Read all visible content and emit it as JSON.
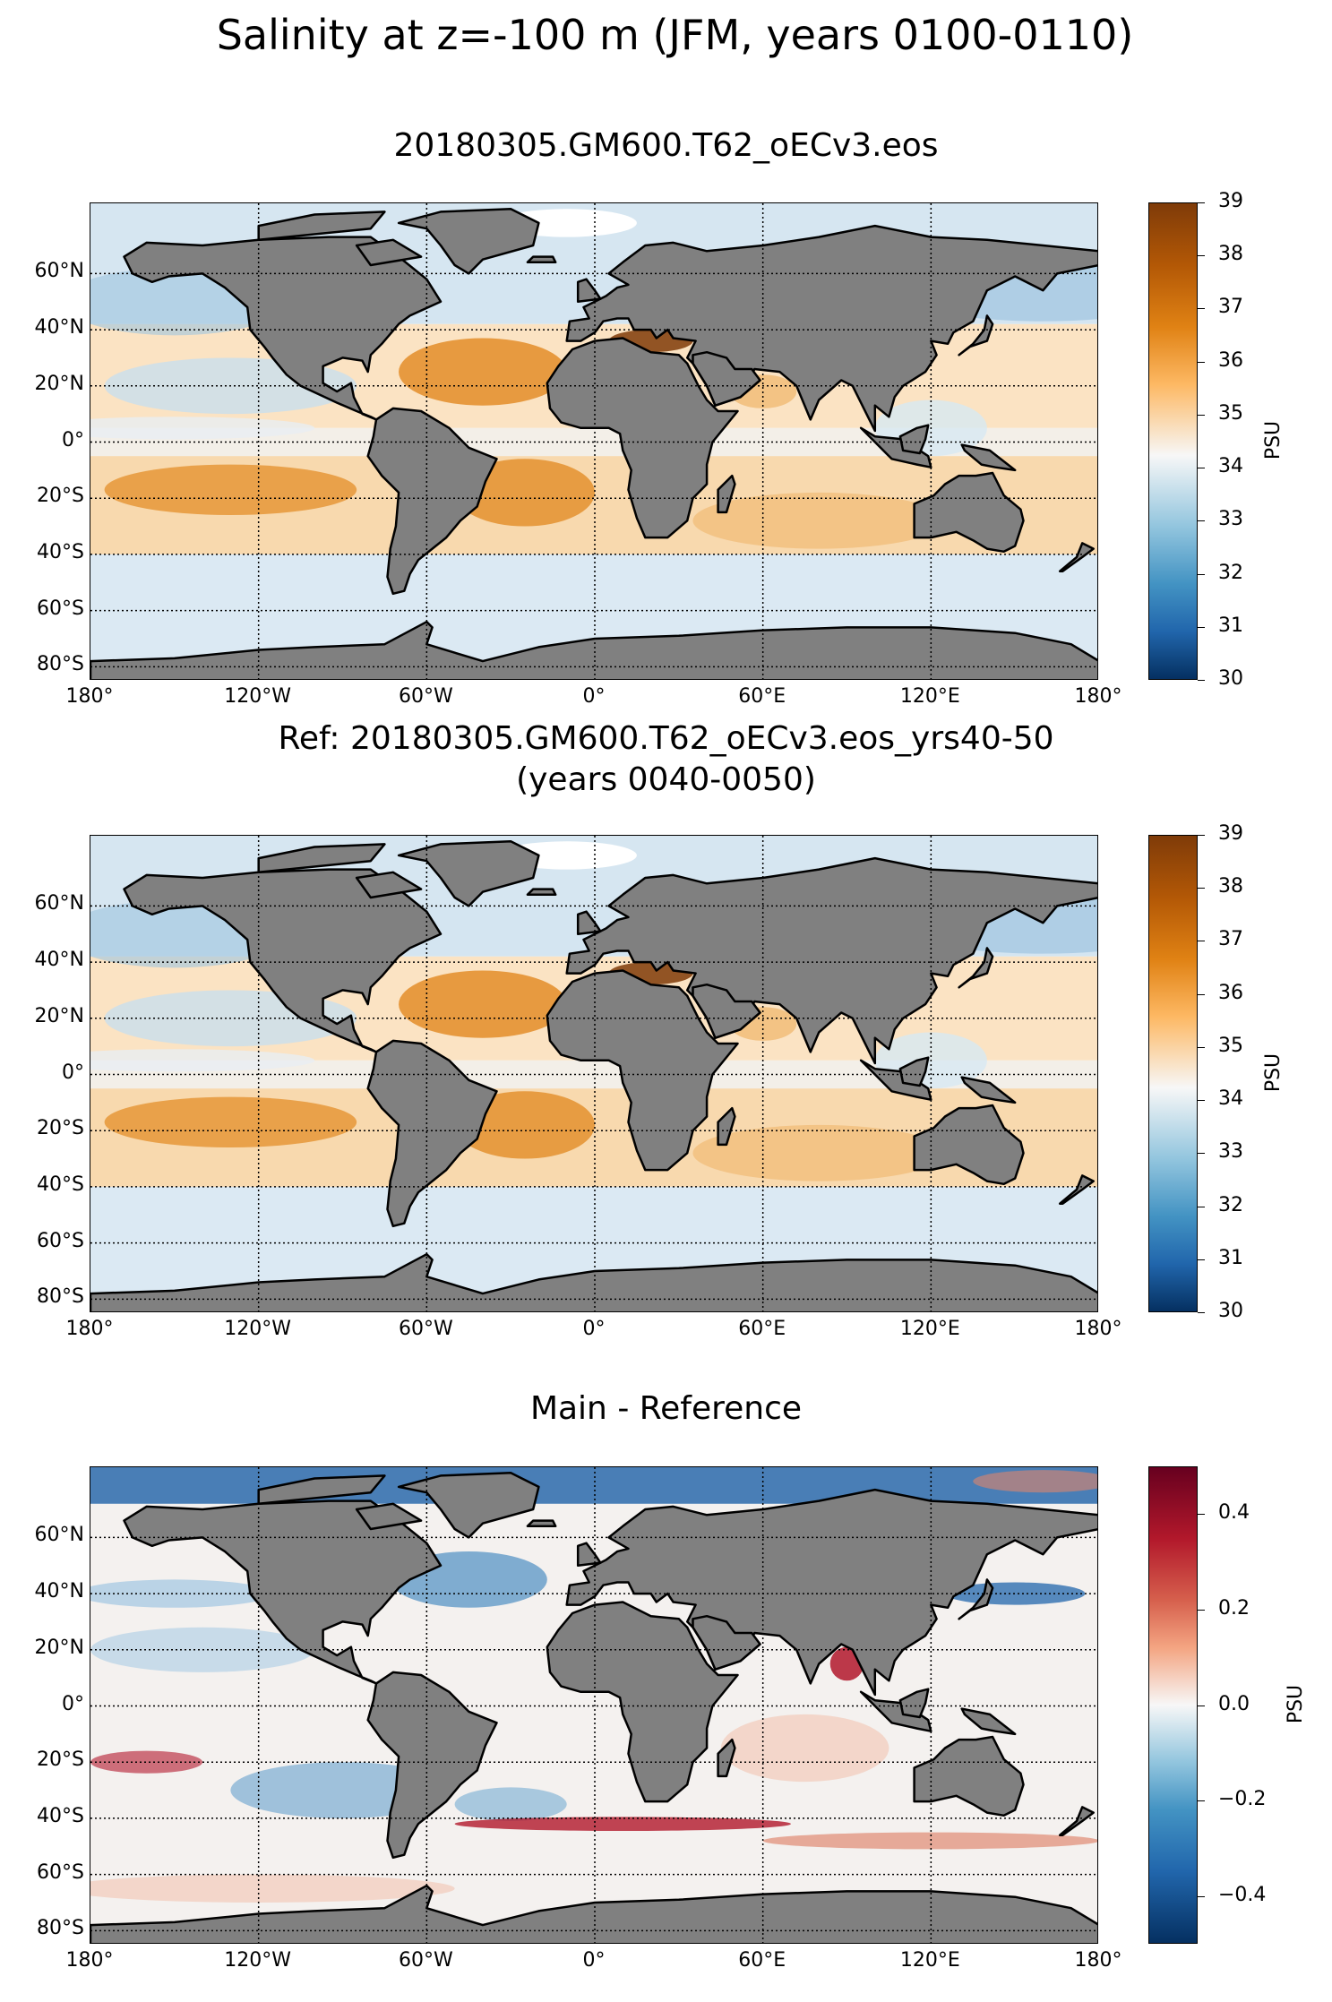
{
  "figure": {
    "title": "Salinity at z=-100 m (JFM, years 0100-0110)"
  },
  "panels": [
    {
      "id": "main",
      "title": "20180305.GM600.T62_oECv3.eos",
      "colormap": "brown-orange-white-blue",
      "colorbar": {
        "label": "PSU",
        "ticks": [
          "30",
          "31",
          "32",
          "33",
          "34",
          "35",
          "36",
          "37",
          "38",
          "39"
        ],
        "range": [
          30,
          39
        ]
      }
    },
    {
      "id": "reference",
      "title": "Ref: 20180305.GM600.T62_oECv3.eos_yrs40-50\n(years 0040-0050)",
      "colormap": "brown-orange-white-blue",
      "colorbar": {
        "label": "PSU",
        "ticks": [
          "30",
          "31",
          "32",
          "33",
          "34",
          "35",
          "36",
          "37",
          "38",
          "39"
        ],
        "range": [
          30,
          39
        ]
      }
    },
    {
      "id": "difference",
      "title": "Main - Reference",
      "colormap": "red-white-blue",
      "colorbar": {
        "label": "PSU",
        "ticks": [
          "−0.4",
          "−0.2",
          "0.0",
          "0.2",
          "0.4"
        ],
        "range": [
          -0.5,
          0.5
        ]
      }
    }
  ],
  "axes": {
    "lon_ticks": [
      "180°",
      "120°W",
      "60°W",
      "0°",
      "60°E",
      "120°E",
      "180°"
    ],
    "lat_ticks": [
      "60°N",
      "40°N",
      "20°N",
      "0°",
      "20°S",
      "40°S",
      "60°S",
      "80°S"
    ]
  },
  "colors": {
    "land": "#808080",
    "salty": "#7f3b08",
    "orange": "#e08214",
    "fresh": "#2166ac",
    "diff_pos": "#b2182b",
    "diff_neg": "#2166ac"
  }
}
